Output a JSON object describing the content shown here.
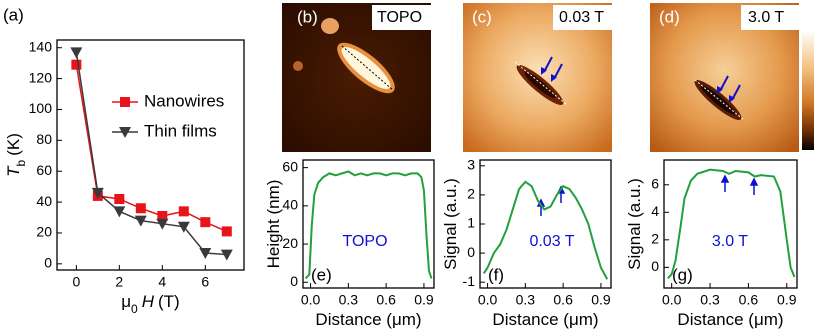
{
  "images": [
    {
      "panel_label": "(b)",
      "caption": "TOPO"
    },
    {
      "panel_label": "(c)",
      "caption": "0.03 T"
    },
    {
      "panel_label": "(d)",
      "caption": "3.0 T"
    }
  ],
  "chart_data": [
    {
      "type": "line",
      "panel_label": "(a)",
      "x": [
        0,
        1,
        2,
        3,
        4,
        5,
        6,
        7
      ],
      "series": [
        {
          "name": "Nanowires",
          "color": "#e8141c",
          "marker": "square",
          "values": [
            129,
            44,
            42,
            36,
            31,
            34,
            27,
            21
          ]
        },
        {
          "name": "Thin films",
          "color": "#3a3a3a",
          "marker": "triangle-down",
          "values": [
            137,
            46,
            34,
            28,
            26,
            24,
            7,
            6
          ]
        }
      ],
      "xlim": [
        -0.9,
        7.8
      ],
      "ylim": [
        -4,
        145
      ],
      "xticks": [
        0,
        2,
        4,
        6
      ],
      "yticks": [
        0,
        20,
        40,
        60,
        80,
        100,
        120,
        140
      ],
      "xlabel": [
        {
          "text": "μ"
        },
        {
          "text": "0",
          "style": "sub"
        },
        {
          "text": "H",
          "style": "italic"
        },
        {
          "text": "(T)"
        }
      ],
      "ylabel": [
        {
          "text": "T",
          "style": "italic"
        },
        {
          "text": "b",
          "style": "sub"
        },
        {
          "text": "(K)"
        }
      ],
      "legend": "right"
    },
    {
      "type": "line",
      "panel_label": "(e)",
      "annotation": "TOPO",
      "annotation_color": "#1010d0",
      "x": [
        -0.04,
        -0.01,
        0.01,
        0.03,
        0.06,
        0.1,
        0.15,
        0.2,
        0.25,
        0.3,
        0.35,
        0.4,
        0.45,
        0.5,
        0.55,
        0.6,
        0.65,
        0.7,
        0.75,
        0.8,
        0.85,
        0.88,
        0.9,
        0.92,
        0.94,
        0.96
      ],
      "series": [
        {
          "color": "#22a03c",
          "values": [
            2,
            4,
            30,
            46,
            52,
            55,
            57,
            56,
            57,
            58,
            56,
            57,
            56,
            57,
            57,
            56,
            57,
            57,
            56,
            57,
            57,
            55,
            48,
            25,
            6,
            2
          ]
        }
      ],
      "xlim": [
        -0.06,
        0.98
      ],
      "ylim": [
        -3,
        64
      ],
      "xticks": [
        {
          "value": 0,
          "label": "0.0"
        },
        0.3,
        0.6,
        0.9
      ],
      "yticks": [
        0,
        20,
        40,
        60
      ],
      "xlabel": [
        {
          "text": "Distance (μm)"
        }
      ],
      "ylabel": [
        {
          "text": "Height (nm)"
        }
      ]
    },
    {
      "type": "line",
      "panel_label": "(f)",
      "annotation": "0.03 T",
      "annotation_color": "#1010d0",
      "x": [
        -0.03,
        0.0,
        0.05,
        0.1,
        0.15,
        0.2,
        0.25,
        0.3,
        0.35,
        0.4,
        0.45,
        0.5,
        0.55,
        0.6,
        0.65,
        0.7,
        0.75,
        0.8,
        0.85,
        0.9,
        0.95
      ],
      "series": [
        {
          "color": "#22a03c",
          "values": [
            -0.7,
            -0.5,
            0.0,
            0.3,
            0.8,
            1.5,
            2.2,
            2.45,
            2.3,
            1.8,
            1.5,
            1.6,
            2.0,
            2.3,
            2.2,
            1.9,
            1.5,
            1.0,
            0.2,
            -0.5,
            -0.9
          ]
        }
      ],
      "xlim": [
        -0.06,
        0.98
      ],
      "ylim": [
        -1.2,
        3.2
      ],
      "xticks": [
        {
          "value": 0,
          "label": "0.0"
        },
        0.3,
        0.6,
        0.9
      ],
      "yticks": [
        -1,
        0,
        1,
        2,
        3
      ],
      "xlabel": [
        {
          "text": "Distance (μm)"
        }
      ],
      "ylabel": [
        {
          "text": "Signal (a.u.)"
        }
      ]
    },
    {
      "type": "line",
      "panel_label": "(g)",
      "annotation": "3.0 T",
      "annotation_color": "#1010d0",
      "x": [
        -0.03,
        0.0,
        0.03,
        0.07,
        0.1,
        0.15,
        0.2,
        0.3,
        0.4,
        0.45,
        0.5,
        0.6,
        0.65,
        0.7,
        0.8,
        0.85,
        0.9,
        0.93,
        0.96
      ],
      "series": [
        {
          "color": "#22a03c",
          "values": [
            -0.8,
            -0.5,
            0.5,
            3,
            5,
            6.3,
            6.8,
            7.1,
            7.0,
            6.8,
            7.0,
            6.9,
            6.6,
            6.7,
            6.6,
            5.5,
            2,
            0.0,
            -0.7
          ]
        }
      ],
      "xlim": [
        -0.06,
        0.98
      ],
      "ylim": [
        -1.5,
        7.8
      ],
      "xticks": [
        {
          "value": 0,
          "label": "0.0"
        },
        0.3,
        0.6,
        0.9
      ],
      "yticks": [
        0,
        2,
        4,
        6
      ],
      "xlabel": [
        {
          "text": "Distance (μm)"
        }
      ],
      "ylabel": [
        {
          "text": "Signal (a.u.)"
        }
      ]
    }
  ]
}
